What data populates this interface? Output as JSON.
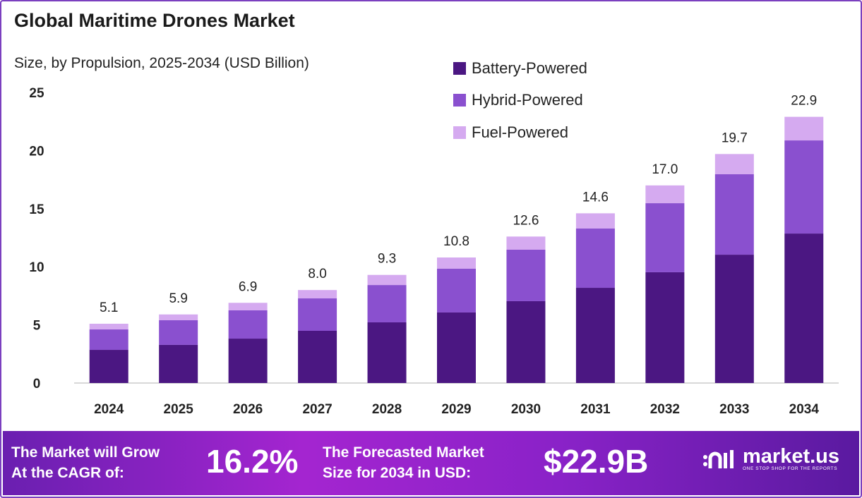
{
  "title": "Global Maritime Drones Market",
  "subtitle": "Size, by Propulsion, 2025-2034 (USD Billion)",
  "colors": {
    "battery": "#4b1782",
    "hybrid": "#8a50cf",
    "fuel": "#d5aaf0",
    "axis": "#cccccc"
  },
  "chart_data": {
    "type": "bar",
    "stacked": true,
    "categories": [
      "2024",
      "2025",
      "2026",
      "2027",
      "2028",
      "2029",
      "2030",
      "2031",
      "2032",
      "2033",
      "2034"
    ],
    "series": [
      {
        "name": "Battery-Powered",
        "values": [
          2.85,
          3.28,
          3.82,
          4.49,
          5.22,
          6.07,
          7.04,
          8.19,
          9.53,
          11.04,
          12.86
        ]
      },
      {
        "name": "Hybrid-Powered",
        "values": [
          1.76,
          2.12,
          2.43,
          2.79,
          3.21,
          3.76,
          4.43,
          5.1,
          5.94,
          6.92,
          8.01
        ]
      },
      {
        "name": "Fuel-Powered",
        "values": [
          0.49,
          0.5,
          0.65,
          0.72,
          0.87,
          0.97,
          1.13,
          1.31,
          1.53,
          1.74,
          2.03
        ]
      }
    ],
    "totals": [
      "5.1",
      "5.9",
      "6.9",
      "8.0",
      "9.3",
      "10.8",
      "12.6",
      "14.6",
      "17.0",
      "19.7",
      "22.9"
    ],
    "yticks": [
      "0",
      "5",
      "10",
      "15",
      "20",
      "25"
    ],
    "ylim": [
      0,
      25
    ],
    "grid": false,
    "legend": "top-right"
  },
  "footer": {
    "cagr_label_1": "The Market will Grow",
    "cagr_label_2": "At the CAGR of:",
    "cagr_value": "16.2%",
    "size_label_1": "The Forecasted Market",
    "size_label_2": "Size for 2034 in USD:",
    "size_value": "$22.9B",
    "logo_text": "market.us",
    "logo_tagline": "ONE STOP SHOP FOR THE REPORTS"
  }
}
